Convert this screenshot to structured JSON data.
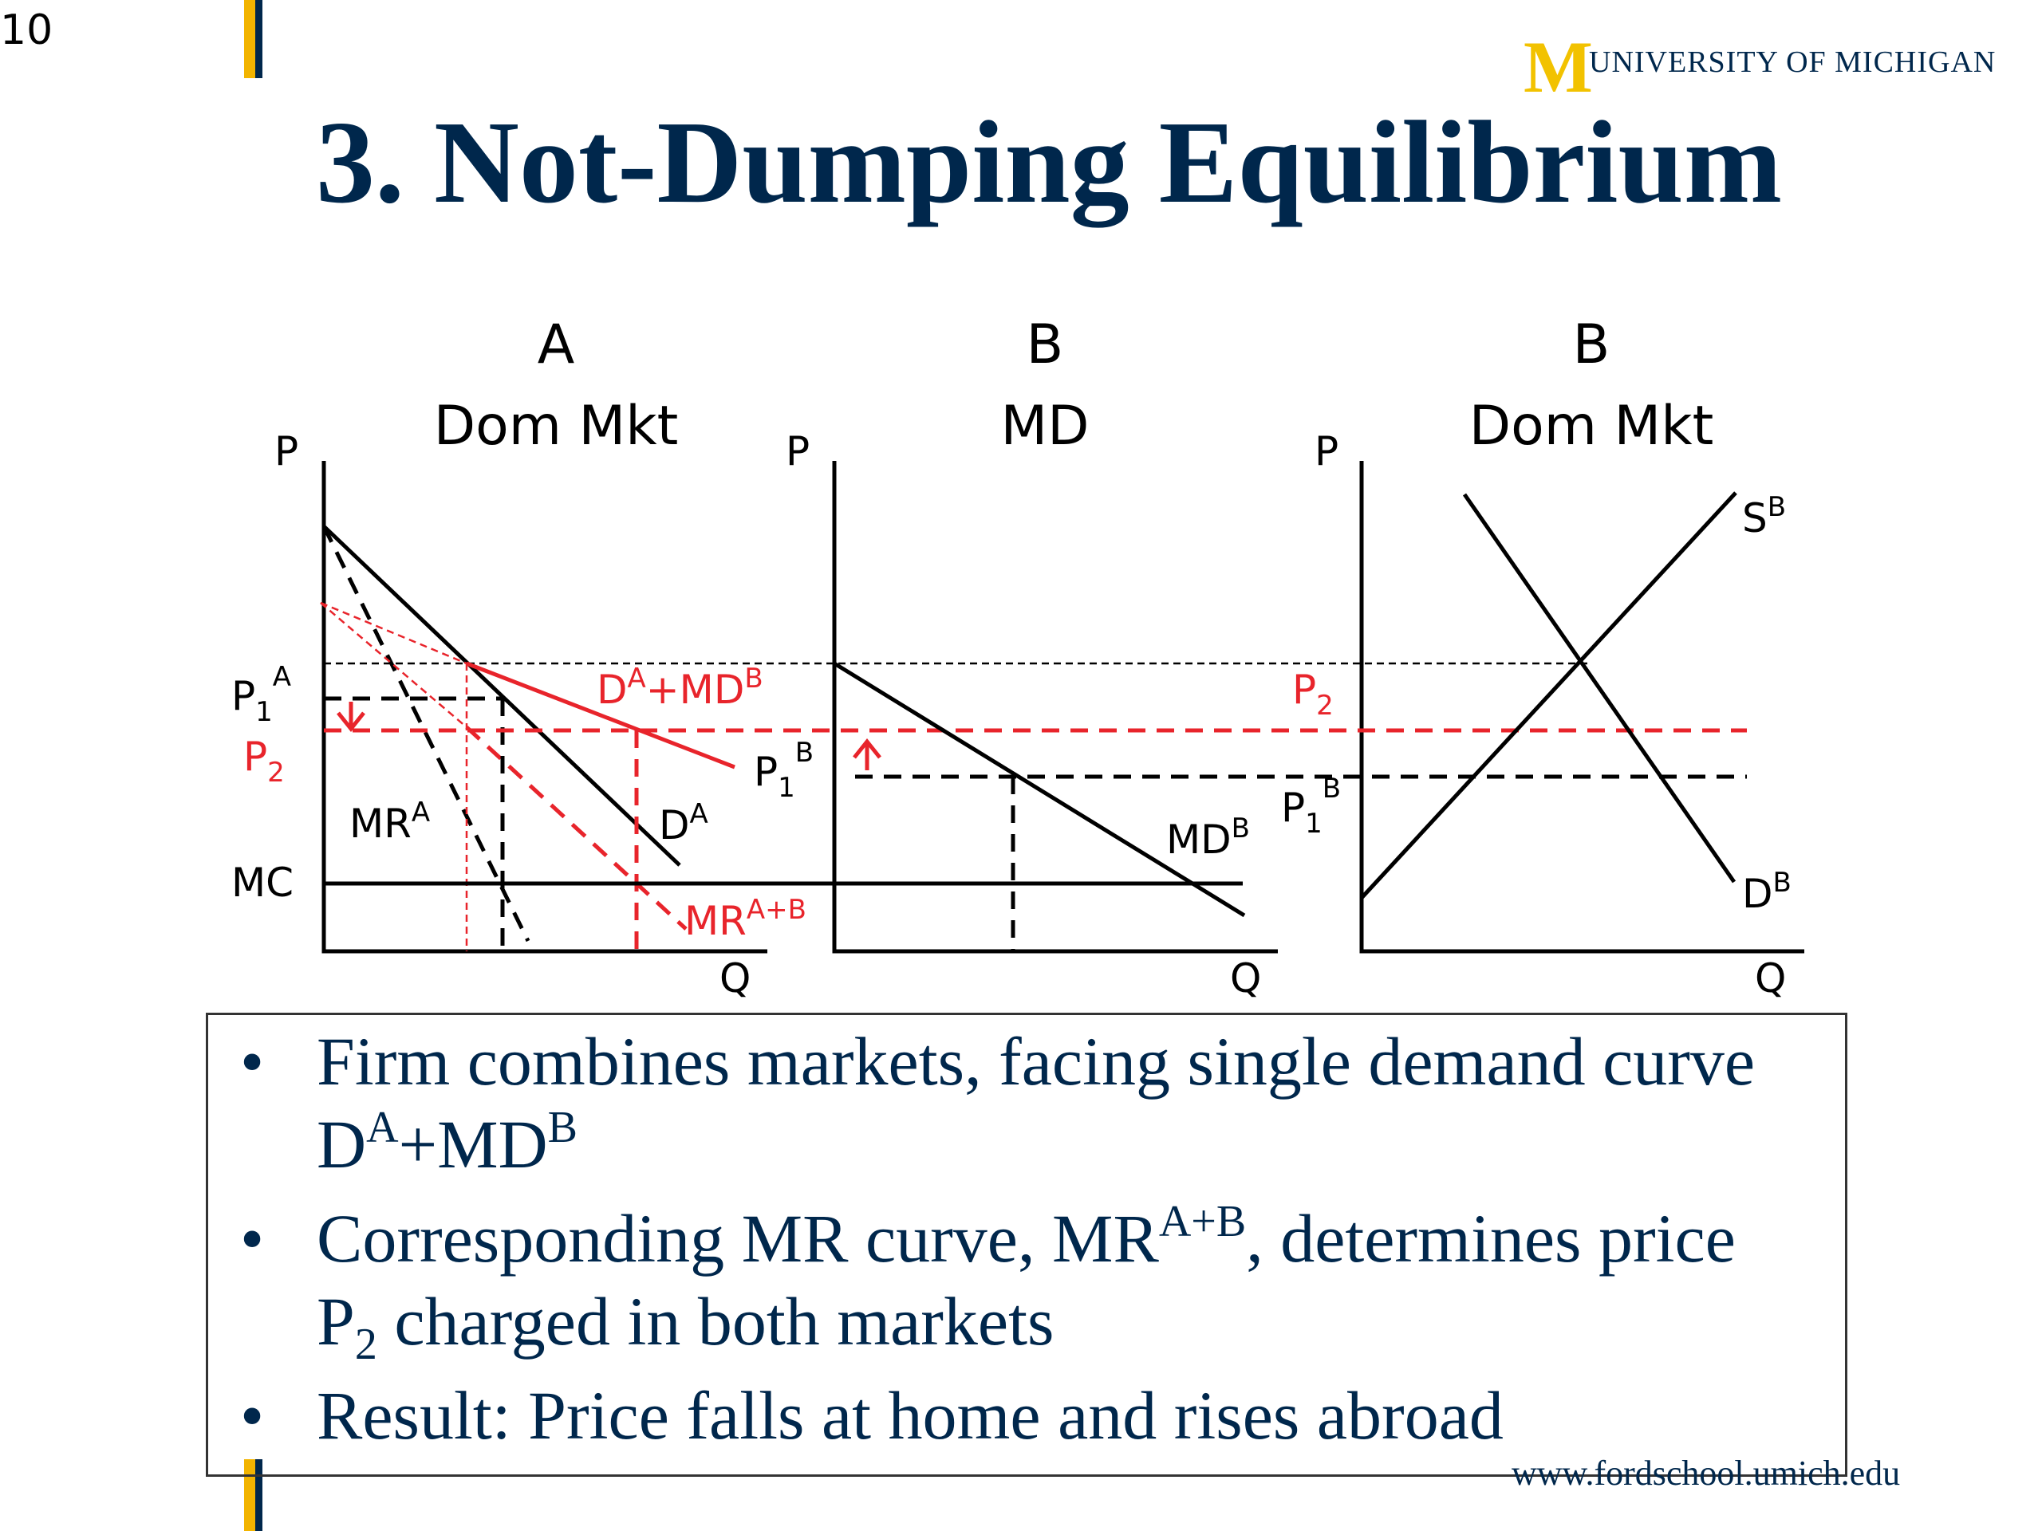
{
  "slide_number": "10",
  "logo": {
    "mark": "M",
    "name": "UNIVERSITY OF MICHIGAN"
  },
  "title": "3.  Not-Dumping Equilibrium",
  "panels": [
    {
      "heading": "A",
      "subheading": "Dom Mkt"
    },
    {
      "heading": "B",
      "subheading": "MD"
    },
    {
      "heading": "B",
      "subheading": "Dom Mkt"
    }
  ],
  "axis": {
    "p": "P",
    "q": "Q"
  },
  "labels": {
    "p1": "P",
    "sub1": "1",
    "supA": "A",
    "supB": "B",
    "p2": "P",
    "sub2": "2",
    "mc": "MC",
    "mr": "MR",
    "d": "D",
    "md": "MD",
    "s": "S",
    "d_plus_md": "D",
    "plus_md": "+MD",
    "sup_a_plus_b": "A+B"
  },
  "colors": {
    "navy": "#00274c",
    "maize": "#f2c200",
    "red": "#e8242b",
    "black": "#000000"
  },
  "bullets": [
    {
      "t1": "Firm combines markets, facing single demand curve D",
      "sup1": "A",
      "t2": "+MD",
      "sup2": "B"
    },
    {
      "t1": "Corresponding MR curve, MR",
      "sup1": "A+B",
      "t2": ", determines price P",
      "sub1": "2",
      "t3": " charged in both markets"
    },
    {
      "t1": "Result:  Price falls at home and rises abroad"
    }
  ],
  "website": "www.fordschool.umich.edu"
}
